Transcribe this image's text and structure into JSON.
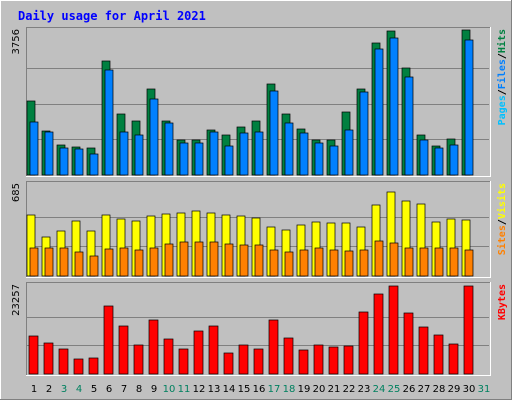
{
  "chart_data": {
    "type": "bar",
    "title": "Daily usage for April 2021",
    "categories": [
      "1",
      "2",
      "3",
      "4",
      "5",
      "6",
      "7",
      "8",
      "9",
      "10",
      "11",
      "12",
      "13",
      "14",
      "15",
      "16",
      "17",
      "18",
      "19",
      "20",
      "21",
      "22",
      "23",
      "24",
      "25",
      "26",
      "27",
      "28",
      "29",
      "30",
      "31"
    ],
    "weekend_days": [
      "3",
      "4",
      "10",
      "11",
      "17",
      "18",
      "24",
      "25",
      "31"
    ],
    "panels": [
      {
        "ylabel": [
          "Pages",
          "/",
          "Files",
          "/",
          "Hits"
        ],
        "ylabel_colors": [
          "#00c0ff",
          "#000000",
          "#0080ff",
          "#000000",
          "#008040"
        ],
        "ymax": 3756,
        "ymax_label": "3756",
        "series": [
          {
            "name": "Hits",
            "color": "#008040",
            "values": [
              1950,
              1160,
              800,
              730,
              700,
              3000,
              1600,
              1420,
              2260,
              1420,
              910,
              910,
              1180,
              1050,
              1250,
              1420,
              2400,
              1600,
              1200,
              910,
              930,
              1650,
              2270,
              3480,
              3780,
              2810,
              1050,
              750,
              940,
              3800,
              null
            ]
          },
          {
            "name": "Files",
            "color": "#0080ff",
            "values": [
              1400,
              1140,
              720,
              680,
              560,
              2750,
              1140,
              1060,
              2000,
              1360,
              830,
              840,
              1120,
              770,
              1100,
              1120,
              2200,
              1360,
              1100,
              840,
              770,
              1180,
              2190,
              3320,
              3600,
              2570,
              920,
              700,
              800,
              3540,
              null
            ]
          },
          {
            "name": "Pages",
            "color": "#00c0ff",
            "values": [
              0,
              0,
              0,
              0,
              0,
              0,
              0,
              0,
              0,
              0,
              0,
              0,
              0,
              0,
              0,
              0,
              0,
              0,
              0,
              0,
              0,
              0,
              0,
              0,
              0,
              0,
              0,
              0,
              0,
              0,
              null
            ]
          }
        ]
      },
      {
        "ylabel": [
          "Sites",
          "/",
          "Visits"
        ],
        "ylabel_colors": [
          "#ff8000",
          "#000000",
          "#ffff00"
        ],
        "ymax": 685,
        "ymax_label": "685",
        "series": [
          {
            "name": "Visits",
            "color": "#ffff00",
            "values": [
              465,
              300,
              340,
              415,
              340,
              465,
              435,
              415,
              455,
              475,
              480,
              495,
              480,
              465,
              455,
              440,
              370,
              350,
              390,
              410,
              405,
              405,
              375,
              540,
              640,
              570,
              550,
              410,
              435,
              425,
              null
            ]
          },
          {
            "name": "Sites",
            "color": "#ff8000",
            "values": [
              215,
              210,
              210,
              185,
              150,
              205,
              210,
              195,
              215,
              240,
              260,
              260,
              260,
              245,
              235,
              235,
              200,
              180,
              195,
              210,
              200,
              190,
              200,
              270,
              250,
              210,
              210,
              210,
              215,
              200,
              null
            ]
          }
        ]
      },
      {
        "ylabel": [
          "KBytes"
        ],
        "ylabel_colors": [
          "#ff0000"
        ],
        "ymax": 23257,
        "ymax_label": "23257",
        "series": [
          {
            "name": "KBytes",
            "color": "#ff0000",
            "values": [
              10200,
              8400,
              6800,
              3900,
              4400,
              18100,
              12700,
              7700,
              14500,
              9400,
              6700,
              11600,
              12700,
              5600,
              7700,
              6800,
              14500,
              9500,
              6500,
              7800,
              7300,
              7400,
              16500,
              21400,
              23400,
              16300,
              12500,
              10400,
              7900,
              23400,
              null
            ]
          }
        ]
      }
    ],
    "xlabel": "",
    "grid": true,
    "legend": "right-vertical"
  }
}
